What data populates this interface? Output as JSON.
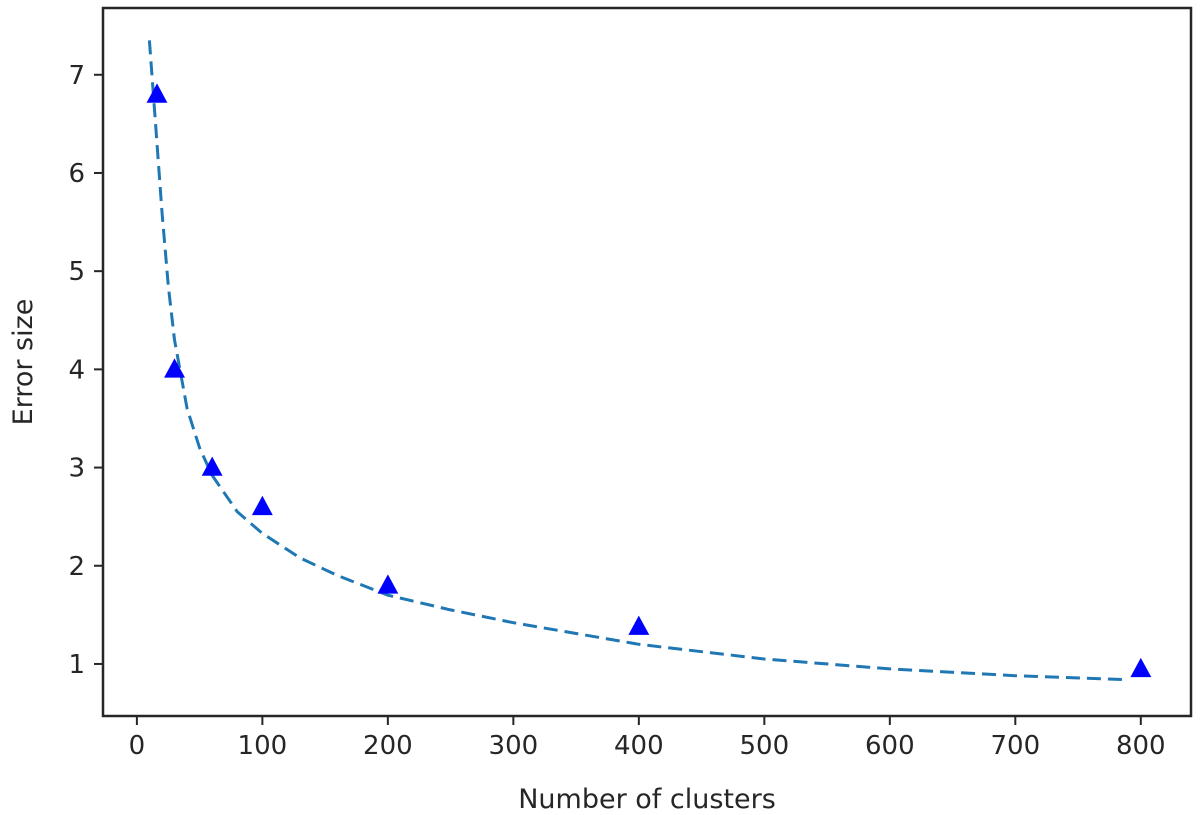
{
  "chart_data": {
    "type": "scatter",
    "title": "",
    "xlabel": "Number of clusters",
    "ylabel": "Error size",
    "xlim": [
      -27,
      840
    ],
    "ylim": [
      0.47,
      7.68
    ],
    "xticks": [
      0,
      100,
      200,
      300,
      400,
      500,
      600,
      700,
      800
    ],
    "yticks": [
      1,
      2,
      3,
      4,
      5,
      6,
      7
    ],
    "grid": false,
    "legend": "none",
    "series": [
      {
        "kind": "markers",
        "marker": "triangle-up",
        "color": "#0000ff",
        "x": [
          16,
          30,
          60,
          100,
          200,
          400,
          800
        ],
        "y": [
          6.8,
          4.0,
          3.0,
          2.6,
          1.8,
          1.38,
          0.95
        ]
      },
      {
        "kind": "dashed-line",
        "color": "#1f77b4",
        "x": [
          10,
          16,
          20,
          25,
          30,
          40,
          50,
          60,
          80,
          100,
          130,
          160,
          200,
          250,
          300,
          400,
          500,
          600,
          700,
          790
        ],
        "y": [
          7.35,
          6.3,
          5.6,
          4.85,
          4.3,
          3.6,
          3.2,
          2.92,
          2.55,
          2.33,
          2.08,
          1.9,
          1.7,
          1.55,
          1.42,
          1.2,
          1.05,
          0.95,
          0.88,
          0.84
        ]
      }
    ]
  }
}
